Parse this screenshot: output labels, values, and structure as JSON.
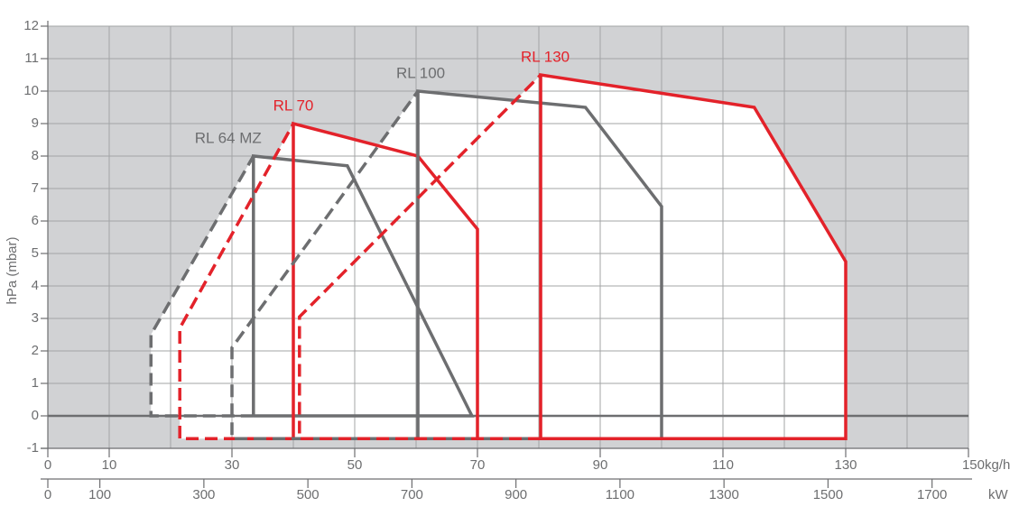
{
  "chart_data": {
    "type": "working-field",
    "ylabel": "hPa (mbar)",
    "xunit": "kg/h",
    "x2unit": "kW",
    "ylim": [
      -1,
      12
    ],
    "yticks": [
      -1,
      0,
      1,
      2,
      3,
      4,
      5,
      6,
      7,
      8,
      9,
      10,
      11,
      12
    ],
    "xlim": [
      0,
      150
    ],
    "xticks": [
      0,
      10,
      30,
      50,
      70,
      90,
      110,
      130,
      150
    ],
    "xgrid": [
      0,
      10,
      20,
      30,
      40,
      50,
      60,
      70,
      80,
      90,
      100,
      110,
      120,
      130,
      140,
      150
    ],
    "x2lim": [
      0,
      1770
    ],
    "x2ticks": [
      0,
      100,
      300,
      500,
      700,
      900,
      1100,
      1300,
      1500,
      1700
    ],
    "background": "#d1d2d4",
    "series": [
      {
        "name": "RL 64 MZ",
        "color": "#6d6e70",
        "solid_x": [
          33.5,
          33.5,
          48.8,
          69.1,
          33.5
        ],
        "solid_y": [
          0,
          8,
          7.7,
          0,
          0
        ],
        "dashed_x": [
          33.5,
          16.8,
          16.8,
          33.5
        ],
        "dashed_y": [
          0,
          0,
          2.5,
          8
        ]
      },
      {
        "name": "RL 70",
        "color": "#e3222a",
        "solid_x": [
          40,
          40,
          60.3,
          70,
          70,
          40
        ],
        "solid_y": [
          -0.7,
          9,
          8,
          5.75,
          -0.7,
          -0.7
        ],
        "dashed_x": [
          40,
          21.5,
          21.5,
          40
        ],
        "dashed_y": [
          -0.7,
          -0.7,
          2.7,
          9
        ]
      },
      {
        "name": "RL 100",
        "color": "#6d6e70",
        "solid_x": [
          60.3,
          60.3,
          87.6,
          100,
          100,
          60.3
        ],
        "solid_y": [
          -0.7,
          10,
          9.5,
          6.45,
          -0.7,
          -0.7
        ],
        "dashed_x": [
          60.3,
          30,
          30,
          60.3
        ],
        "dashed_y": [
          -0.7,
          -0.7,
          2.1,
          10
        ]
      },
      {
        "name": "RL 130",
        "color": "#e3222a",
        "solid_x": [
          80.3,
          80.3,
          115.1,
          130,
          130,
          80.3
        ],
        "solid_y": [
          -0.7,
          10.5,
          9.5,
          4.75,
          -0.7,
          -0.7
        ],
        "dashed_x": [
          80.3,
          41,
          41,
          80.3
        ],
        "dashed_y": [
          -0.7,
          -0.7,
          3.05,
          10.5
        ]
      }
    ]
  }
}
